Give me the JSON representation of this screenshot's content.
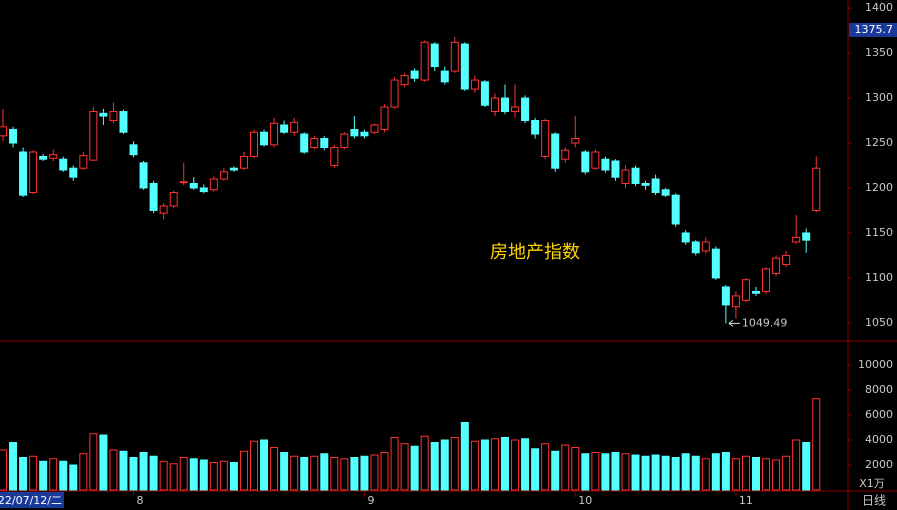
{
  "chart_data": {
    "type": "candlestick",
    "title": "房地产指数",
    "up_color": "#ff3232",
    "down_color": "#54ffff",
    "open": [
      1258,
      1265,
      1240,
      1195,
      1235,
      1233,
      1232,
      1222,
      1222,
      1231,
      1283,
      1275,
      1285,
      1248,
      1228,
      1205,
      1172,
      1180,
      1206,
      1205,
      1200,
      1198,
      1210,
      1222,
      1222,
      1235,
      1262,
      1248,
      1270,
      1262,
      1260,
      1245,
      1255,
      1225,
      1245,
      1265,
      1262,
      1262,
      1265,
      1290,
      1315,
      1330,
      1320,
      1360,
      1330,
      1330,
      1360,
      1310,
      1318,
      1285,
      1300,
      1285,
      1300,
      1275,
      1235,
      1260,
      1232,
      1250,
      1240,
      1222,
      1232,
      1230,
      1205,
      1222,
      1205,
      1210,
      1198,
      1192,
      1150,
      1140,
      1130,
      1132,
      1090,
      1068,
      1075,
      1085,
      1085,
      1105,
      1115,
      1140,
      1150,
      1175
    ],
    "high": [
      1288,
      1268,
      1245,
      1242,
      1238,
      1243,
      1235,
      1225,
      1240,
      1290,
      1288,
      1295,
      1287,
      1252,
      1230,
      1208,
      1183,
      1197,
      1228,
      1212,
      1204,
      1213,
      1222,
      1224,
      1240,
      1265,
      1265,
      1278,
      1275,
      1278,
      1262,
      1258,
      1258,
      1248,
      1262,
      1280,
      1265,
      1272,
      1293,
      1323,
      1328,
      1333,
      1364,
      1362,
      1335,
      1368,
      1362,
      1325,
      1320,
      1305,
      1315,
      1315,
      1303,
      1278,
      1277,
      1262,
      1245,
      1280,
      1242,
      1243,
      1235,
      1232,
      1225,
      1225,
      1208,
      1215,
      1200,
      1194,
      1153,
      1142,
      1145,
      1135,
      1092,
      1085,
      1100,
      1090,
      1112,
      1125,
      1130,
      1170,
      1155,
      1235
    ],
    "low": [
      1252,
      1245,
      1190,
      1193,
      1230,
      1230,
      1218,
      1208,
      1220,
      1230,
      1270,
      1272,
      1260,
      1234,
      1198,
      1172,
      1165,
      1178,
      1203,
      1198,
      1194,
      1196,
      1208,
      1218,
      1220,
      1233,
      1246,
      1245,
      1260,
      1258,
      1238,
      1243,
      1242,
      1222,
      1243,
      1255,
      1255,
      1260,
      1262,
      1288,
      1312,
      1318,
      1318,
      1330,
      1315,
      1328,
      1308,
      1306,
      1290,
      1280,
      1282,
      1278,
      1272,
      1255,
      1232,
      1218,
      1228,
      1245,
      1215,
      1220,
      1217,
      1208,
      1200,
      1202,
      1198,
      1192,
      1190,
      1157,
      1137,
      1125,
      1127,
      1098,
      1049.49,
      1055,
      1073,
      1080,
      1082,
      1102,
      1112,
      1138,
      1128,
      1173
    ],
    "close": [
      1268,
      1250,
      1192,
      1240,
      1232,
      1237,
      1220,
      1212,
      1236,
      1285,
      1280,
      1285,
      1262,
      1237,
      1200,
      1175,
      1180,
      1195,
      1207,
      1200,
      1196,
      1210,
      1218,
      1220,
      1235,
      1262,
      1248,
      1272,
      1262,
      1273,
      1240,
      1255,
      1245,
      1245,
      1260,
      1258,
      1258,
      1270,
      1290,
      1320,
      1325,
      1322,
      1362,
      1335,
      1318,
      1362,
      1310,
      1320,
      1292,
      1300,
      1285,
      1290,
      1275,
      1260,
      1275,
      1222,
      1242,
      1255,
      1218,
      1240,
      1220,
      1212,
      1220,
      1205,
      1203,
      1195,
      1192,
      1160,
      1140,
      1128,
      1140,
      1100,
      1070,
      1080,
      1098,
      1083,
      1110,
      1122,
      1125,
      1145,
      1142,
      1222
    ],
    "volume": [
      3200,
      3800,
      2600,
      2700,
      2300,
      2500,
      2300,
      2000,
      2900,
      4500,
      4400,
      3200,
      3100,
      2600,
      3000,
      2700,
      2300,
      2100,
      2600,
      2500,
      2400,
      2200,
      2300,
      2200,
      3100,
      3900,
      4000,
      3400,
      3000,
      2700,
      2600,
      2700,
      2900,
      2600,
      2500,
      2600,
      2700,
      2800,
      3000,
      4200,
      3700,
      3500,
      4300,
      3800,
      4000,
      4200,
      5400,
      3900,
      4000,
      4100,
      4200,
      4000,
      4100,
      3300,
      3700,
      3100,
      3600,
      3400,
      2900,
      3000,
      2900,
      3000,
      2900,
      2800,
      2700,
      2800,
      2700,
      2600,
      2900,
      2700,
      2500,
      2900,
      3000,
      2500,
      2700,
      2600,
      2500,
      2400,
      2700,
      4000,
      3800,
      7300
    ],
    "x_labels": [
      {
        "index": 0,
        "label": "2022/07/12/二"
      },
      {
        "index": 13,
        "label": "8"
      },
      {
        "index": 36,
        "label": "9"
      },
      {
        "index": 57,
        "label": "10"
      },
      {
        "index": 73,
        "label": "11"
      }
    ],
    "ylim": [
      1031,
      1409
    ],
    "yticks": [
      1050,
      1100,
      1150,
      1200,
      1250,
      1300,
      1350,
      1400
    ],
    "price_marker": 1375.7,
    "volume_ylim": [
      0,
      11840
    ],
    "volume_yticks": [
      2000,
      4000,
      6000,
      8000,
      10000
    ],
    "volume_unit": "X1万",
    "period": "日线"
  }
}
